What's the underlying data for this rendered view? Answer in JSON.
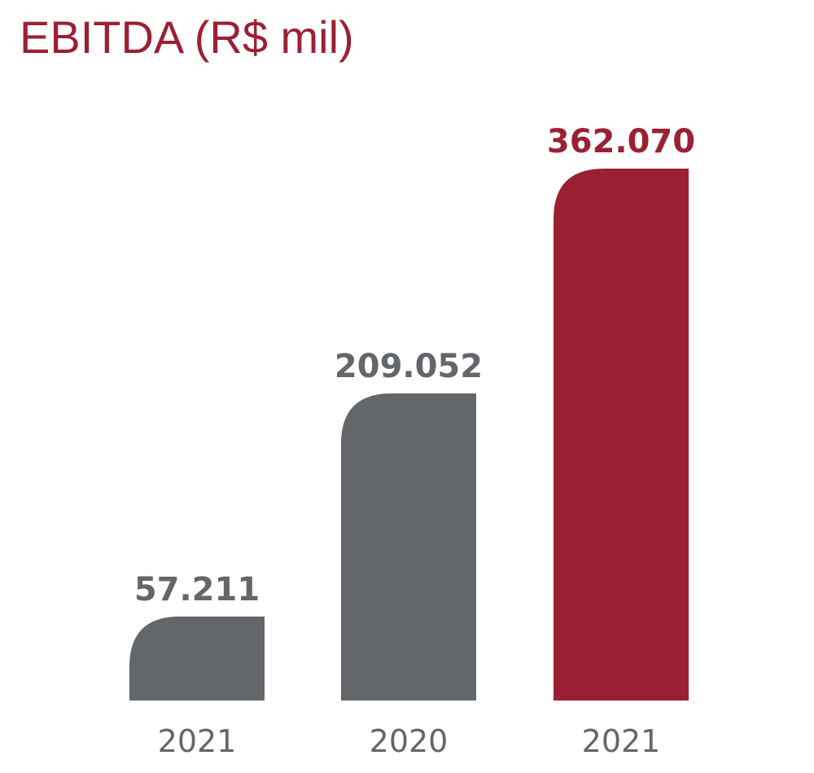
{
  "chart_data": {
    "type": "bar",
    "title": "EBITDA (R$ mil)",
    "categories": [
      "2021",
      "2020",
      "2021"
    ],
    "values": [
      57211,
      209052,
      362070
    ],
    "value_labels": [
      "57.211",
      "209.052",
      "362.070"
    ],
    "xlabel": "",
    "ylabel": "",
    "ylim": [
      0,
      362070
    ],
    "grid": false,
    "legend": "none",
    "highlight_index": 2
  },
  "colors": {
    "title": "#9b2033",
    "bar": "#63666b",
    "bar_highlight": "#9b2033",
    "value_label": "#63666b",
    "value_label_highlight": "#9b2033",
    "category_label": "#63666b"
  }
}
